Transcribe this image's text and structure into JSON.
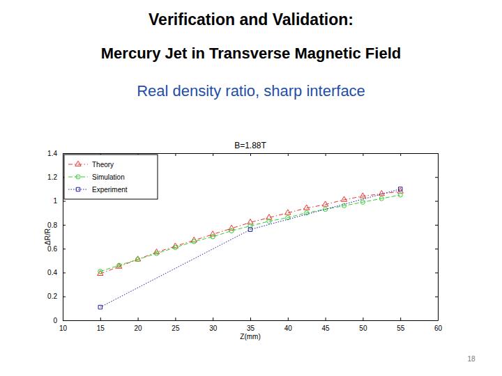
{
  "slide": {
    "heading": "Verification and Validation:",
    "subheading": "Mercury Jet in Transverse Magnetic Field",
    "tagline": "Real density ratio, sharp interface",
    "page": 18
  },
  "chart_data": {
    "type": "line",
    "title": "B=1.88T",
    "x_label": "Z(mm)",
    "y_label": "ΔR/R",
    "series": [
      {
        "name": "Theory",
        "color": "#e8332a",
        "marker": "triangle",
        "line_style": "dashdot",
        "x": [
          15,
          17.5,
          20,
          22.5,
          25,
          27.5,
          30,
          32.5,
          35,
          37.5,
          40,
          42.5,
          45,
          47.5,
          50,
          52.5,
          55
        ],
        "values": [
          0.39,
          0.45,
          0.51,
          0.57,
          0.62,
          0.67,
          0.72,
          0.77,
          0.82,
          0.86,
          0.9,
          0.94,
          0.97,
          1.01,
          1.04,
          1.06,
          1.08
        ]
      },
      {
        "name": "Simulation",
        "color": "#33cc33",
        "marker": "circle",
        "line_style": "dashed",
        "x": [
          15,
          17.5,
          20,
          22.5,
          25,
          27.5,
          30,
          32.5,
          35,
          37.5,
          40,
          42.5,
          45,
          47.5,
          50,
          52.5,
          55
        ],
        "values": [
          0.41,
          0.46,
          0.51,
          0.56,
          0.61,
          0.66,
          0.7,
          0.75,
          0.79,
          0.83,
          0.86,
          0.9,
          0.93,
          0.96,
          0.99,
          1.02,
          1.05
        ]
      },
      {
        "name": "Experiment",
        "color": "#1a1aa8",
        "marker": "square",
        "line_style": "dotted",
        "x": [
          15,
          35,
          55
        ],
        "values": [
          0.11,
          0.76,
          1.1
        ]
      }
    ],
    "xlim": [
      10,
      60
    ],
    "xticks": [
      10,
      15,
      20,
      25,
      30,
      35,
      40,
      45,
      50,
      55,
      60
    ],
    "ylim": [
      0,
      1.4
    ],
    "yticks": [
      0,
      0.2,
      0.4,
      0.6,
      0.8,
      1,
      1.2,
      1.4
    ],
    "grid": false,
    "legend": "upper left"
  }
}
